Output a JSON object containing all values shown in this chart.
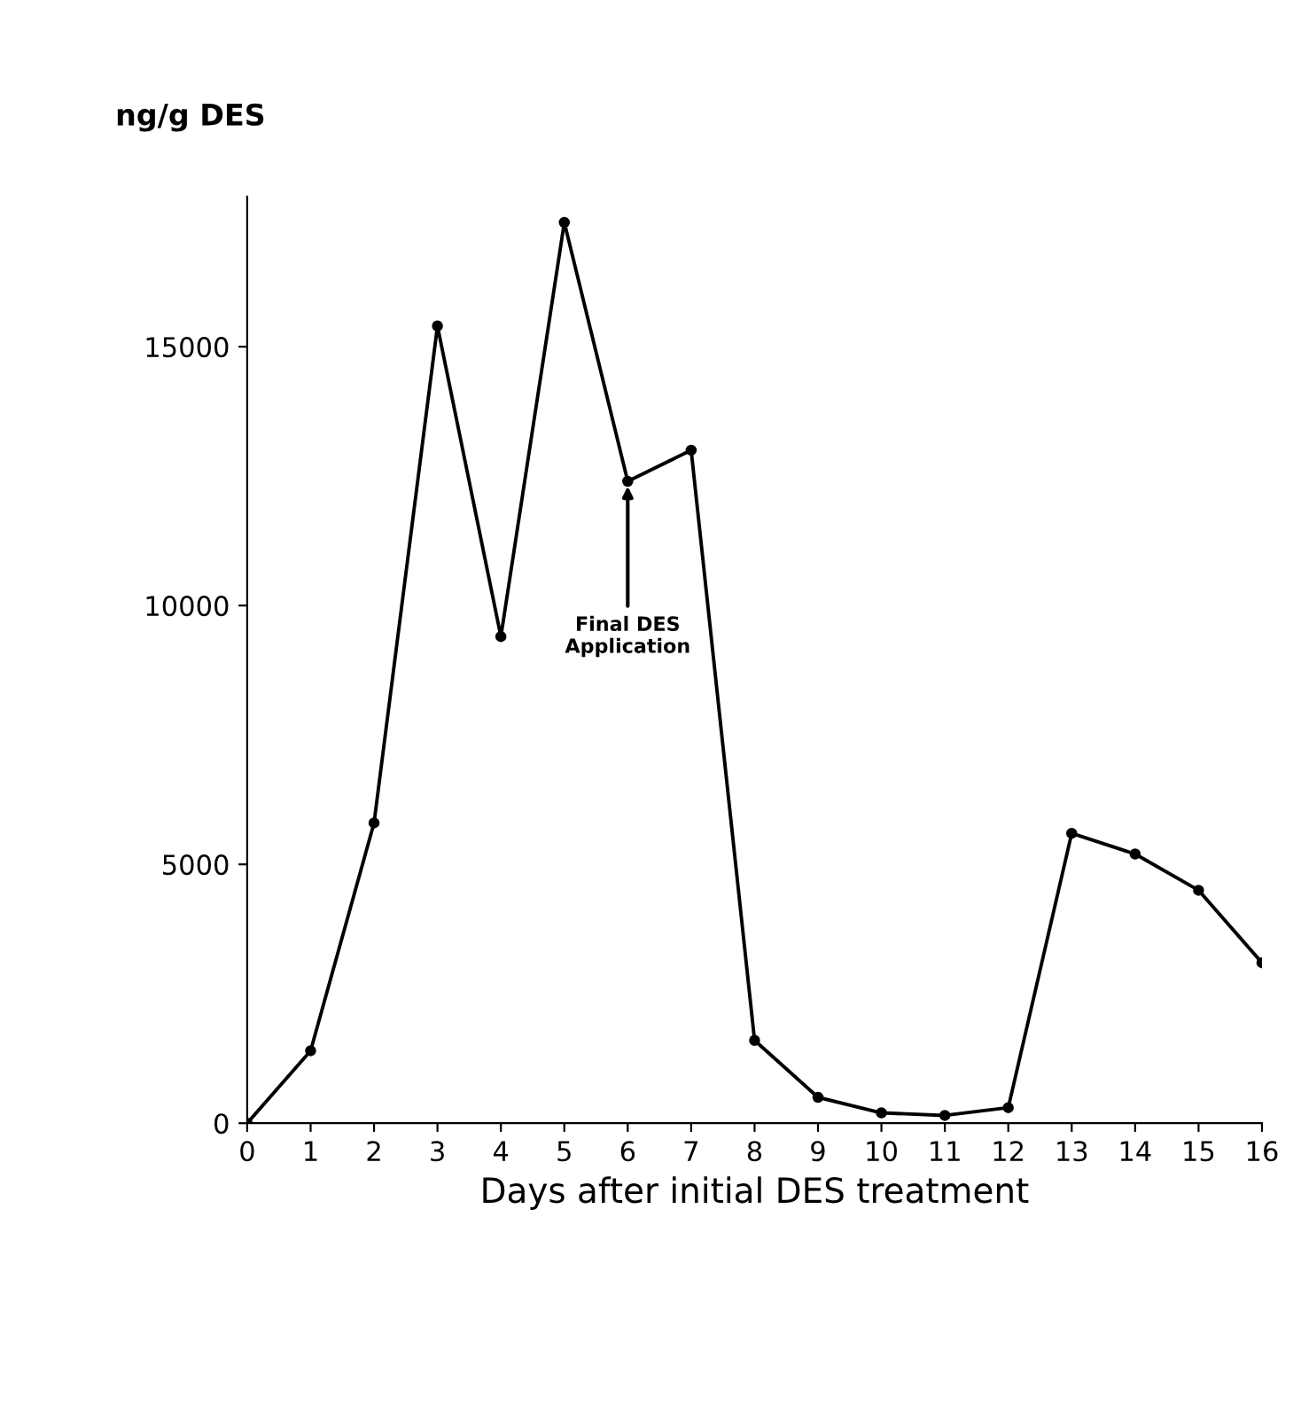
{
  "chart_data": {
    "type": "line",
    "ylabel": "ng/g DES",
    "xlabel": "Days after initial DES treatment",
    "x": [
      0,
      1,
      2,
      3,
      4,
      5,
      6,
      7,
      8,
      9,
      10,
      11,
      12,
      13,
      14,
      15,
      16
    ],
    "series": [
      {
        "color": "#000000",
        "values": [
          0,
          1400,
          5800,
          15400,
          9400,
          17400,
          12400,
          13000,
          1600,
          500,
          200,
          150,
          300,
          5600,
          5200,
          4500,
          3100
        ]
      }
    ],
    "xlim": [
      0,
      16
    ],
    "xticks": [
      0,
      1,
      2,
      3,
      4,
      5,
      6,
      7,
      8,
      9,
      10,
      11,
      12,
      13,
      14,
      15,
      16
    ],
    "ylim": [
      0,
      17900
    ],
    "yticks": [
      0,
      5000,
      10000,
      15000
    ],
    "marker": "circle",
    "line_style": "solid",
    "grid": false,
    "legend": false,
    "annotations": [
      {
        "text": "Final DES\nApplication",
        "x": 6,
        "y": 12400
      }
    ]
  }
}
